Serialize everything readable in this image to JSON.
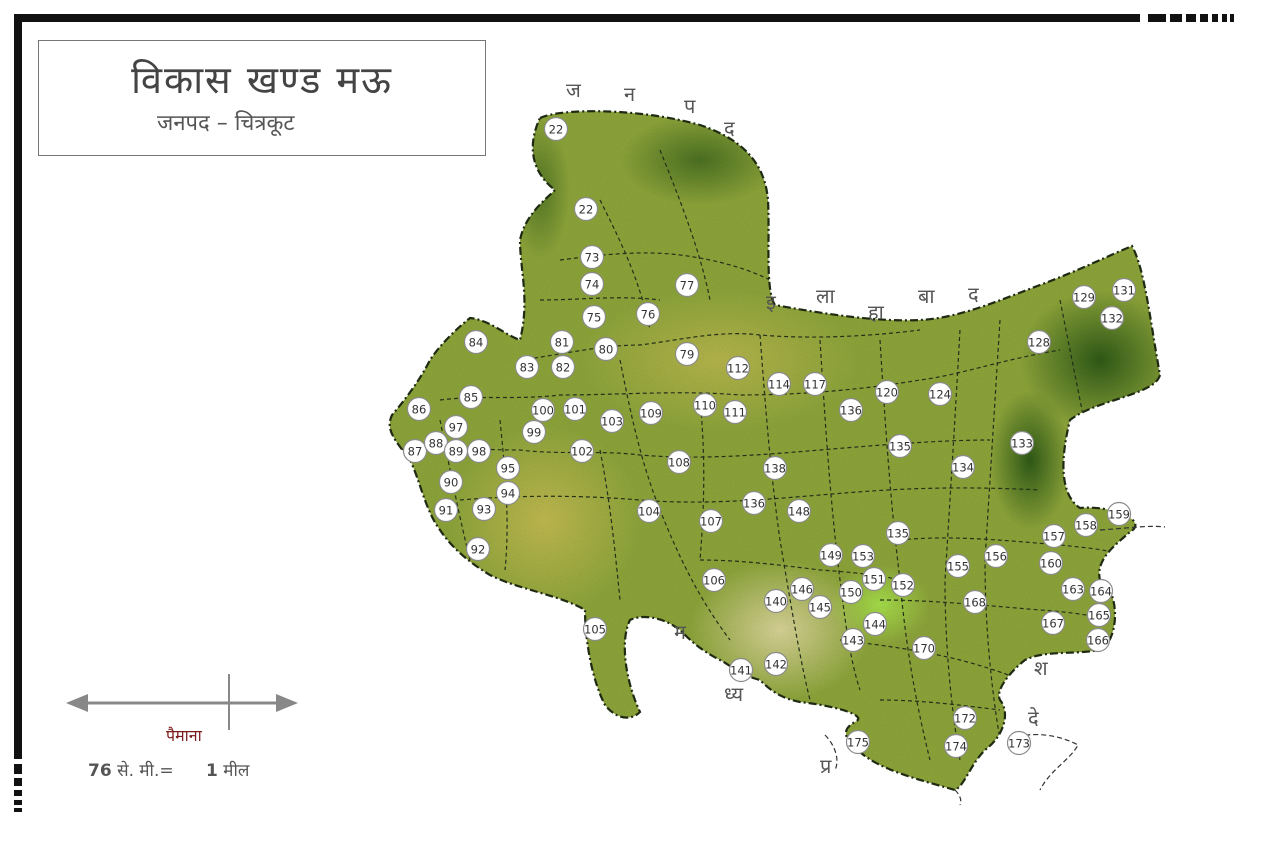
{
  "title": "विकास खण्ड मऊ",
  "subtitle": "जनपद  –  चित्रकूट",
  "colors": {
    "frame": "#111111",
    "land_green": "#8fa83a",
    "land_dark": "#3f6b1e",
    "land_yellow": "#b8b447",
    "land_pale": "#cfc98a",
    "land_bright": "#9ed145",
    "marker_fill": "#ffffff",
    "scale_label": "#7a1a1a"
  },
  "scale": {
    "label": "पैमाना",
    "value_left": "76",
    "unit_left": "से. मी.=",
    "value_right": "1",
    "unit_right": "मील"
  },
  "border_letters": {
    "janpad_top": [
      "ज",
      "न",
      "प",
      "द"
    ],
    "allahabad": [
      "इ",
      "ला",
      "हा",
      "बा",
      "द"
    ],
    "madhya": [
      "म",
      "ध्य"
    ],
    "pradesh": [
      "प्र",
      "दे",
      "श"
    ]
  },
  "village_numbers": [
    "22",
    "22",
    "73",
    "74",
    "75",
    "76",
    "77",
    "79",
    "80",
    "81",
    "82",
    "83",
    "84",
    "85",
    "86",
    "87",
    "88",
    "89",
    "90",
    "91",
    "92",
    "93",
    "94",
    "95",
    "97",
    "98",
    "99",
    "100",
    "101",
    "102",
    "103",
    "104",
    "105",
    "106",
    "107",
    "108",
    "109",
    "110",
    "111",
    "112",
    "114",
    "117",
    "120",
    "124",
    "128",
    "129",
    "131",
    "132",
    "133",
    "134",
    "135",
    "135",
    "136",
    "136",
    "138",
    "140",
    "141",
    "142",
    "143",
    "144",
    "145",
    "146",
    "148",
    "149",
    "150",
    "151",
    "152",
    "153",
    "155",
    "156",
    "157",
    "158",
    "159",
    "160",
    "163",
    "164",
    "165",
    "166",
    "167",
    "168",
    "170",
    "172",
    "173",
    "174",
    "175"
  ]
}
